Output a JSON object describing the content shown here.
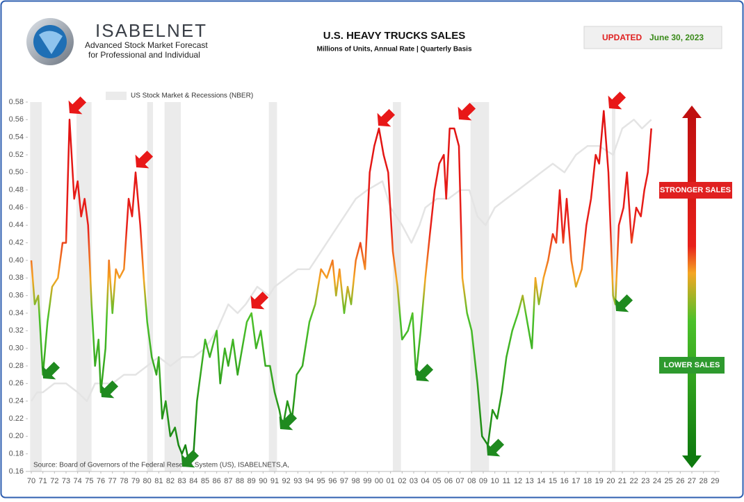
{
  "header": {
    "brand": "ISABELNET",
    "tagline1": "Advanced Stock Market Forecast",
    "tagline2": "for Professional and Individual",
    "updated_label": "UPDATED",
    "updated_date": "June 30, 2023"
  },
  "chart_data": {
    "type": "line",
    "title": "U.S. HEAVY TRUCKS SALES",
    "subtitle": "Millions of Units, Annual Rate | Quarterly Basis",
    "source": "Source: Board of Governors of the Federal Reserve System (US), ISABELNETS,A,",
    "annotations": {
      "high": "STRONGER SALES",
      "low": "LOWER SALES"
    },
    "xlim": [
      1969.7,
      2029.4
    ],
    "ylim": [
      0.16,
      0.58
    ],
    "yticks": [
      0.16,
      0.18,
      {
        "value": 0.2,
        "label": "0.20"
      },
      0.22,
      0.24,
      0.26,
      0.28,
      {
        "value": 0.3,
        "label": "0.30"
      },
      0.32,
      0.34,
      0.36,
      0.38,
      {
        "value": 0.4,
        "label": "0.40"
      },
      0.42,
      0.44,
      0.46,
      0.48,
      {
        "value": 0.5,
        "label": "0.50"
      },
      0.52,
      0.54,
      0.56,
      0.58
    ],
    "xticks": [
      {
        "value": 1970,
        "label": "70"
      },
      {
        "value": 1971,
        "label": "71"
      },
      {
        "value": 1972,
        "label": "72"
      },
      {
        "value": 1973,
        "label": "73"
      },
      {
        "value": 1974,
        "label": "74"
      },
      {
        "value": 1975,
        "label": "75"
      },
      {
        "value": 1976,
        "label": "76"
      },
      {
        "value": 1977,
        "label": "77"
      },
      {
        "value": 1978,
        "label": "78"
      },
      {
        "value": 1979,
        "label": "79"
      },
      {
        "value": 1980,
        "label": "80"
      },
      {
        "value": 1981,
        "label": "81"
      },
      {
        "value": 1982,
        "label": "82"
      },
      {
        "value": 1983,
        "label": "83"
      },
      {
        "value": 1984,
        "label": "84"
      },
      {
        "value": 1985,
        "label": "85"
      },
      {
        "value": 1986,
        "label": "86"
      },
      {
        "value": 1987,
        "label": "87"
      },
      {
        "value": 1988,
        "label": "88"
      },
      {
        "value": 1989,
        "label": "89"
      },
      {
        "value": 1990,
        "label": "90"
      },
      {
        "value": 1991,
        "label": "91"
      },
      {
        "value": 1992,
        "label": "92"
      },
      {
        "value": 1993,
        "label": "93"
      },
      {
        "value": 1994,
        "label": "94"
      },
      {
        "value": 1995,
        "label": "95"
      },
      {
        "value": 1996,
        "label": "96"
      },
      {
        "value": 1997,
        "label": "97"
      },
      {
        "value": 1998,
        "label": "98"
      },
      {
        "value": 1999,
        "label": "99"
      },
      {
        "value": 2000,
        "label": "00"
      },
      {
        "value": 2001,
        "label": "01"
      },
      {
        "value": 2002,
        "label": "02"
      },
      {
        "value": 2003,
        "label": "03"
      },
      {
        "value": 2004,
        "label": "04"
      },
      {
        "value": 2005,
        "label": "05"
      },
      {
        "value": 2006,
        "label": "06"
      },
      {
        "value": 2007,
        "label": "07"
      },
      {
        "value": 2008,
        "label": "08"
      },
      {
        "value": 2009,
        "label": "09"
      },
      {
        "value": 2010,
        "label": "10"
      },
      {
        "value": 2011,
        "label": "11"
      },
      {
        "value": 2012,
        "label": "12"
      },
      {
        "value": 2013,
        "label": "13"
      },
      {
        "value": 2014,
        "label": "14"
      },
      {
        "value": 2015,
        "label": "15"
      },
      {
        "value": 2016,
        "label": "16"
      },
      {
        "value": 2017,
        "label": "17"
      },
      {
        "value": 2018,
        "label": "18"
      },
      {
        "value": 2019,
        "label": "19"
      },
      {
        "value": 2020,
        "label": "20"
      },
      {
        "value": 2021,
        "label": "21"
      },
      {
        "value": 2022,
        "label": "22"
      },
      {
        "value": 2023,
        "label": "23"
      },
      {
        "value": 2024,
        "label": "24"
      },
      {
        "value": 2025,
        "label": "25"
      },
      {
        "value": 2026,
        "label": "26"
      },
      {
        "value": 2027,
        "label": "27"
      },
      {
        "value": 2028,
        "label": "28"
      },
      {
        "value": 2029,
        "label": "29"
      }
    ],
    "recessions": [
      [
        1969.9,
        1970.9
      ],
      [
        1973.9,
        1975.2
      ],
      [
        1980.0,
        1980.5
      ],
      [
        1981.5,
        1982.9
      ],
      [
        1990.5,
        1991.2
      ],
      [
        2001.2,
        2001.9
      ],
      [
        2007.9,
        2009.5
      ],
      [
        2020.1,
        2020.4
      ]
    ],
    "recession_color": "#ebebeb",
    "series": [
      {
        "name": "US Stock Market & Recessions (NBER)",
        "color": "#e4e4e4",
        "x": [
          1970,
          1970.5,
          1971,
          1972,
          1973,
          1974,
          1974.8,
          1975.5,
          1977,
          1978,
          1979,
          1980,
          1981,
          1982,
          1983,
          1984,
          1985,
          1986,
          1987,
          1987.8,
          1988.5,
          1989.5,
          1990.5,
          1991,
          1992,
          1993,
          1994,
          1995,
          1996,
          1997,
          1998,
          1999,
          2000.3,
          2001,
          2002,
          2002.8,
          2003.5,
          2004,
          2005,
          2006,
          2007,
          2007.8,
          2008.5,
          2009.2,
          2010,
          2011,
          2012,
          2013,
          2014,
          2015,
          2016,
          2017,
          2018,
          2019,
          2020.2,
          2021,
          2022,
          2022.7,
          2023.5
        ],
        "values": [
          0.24,
          0.25,
          0.25,
          0.26,
          0.26,
          0.25,
          0.24,
          0.26,
          0.26,
          0.27,
          0.27,
          0.28,
          0.29,
          0.28,
          0.29,
          0.29,
          0.3,
          0.32,
          0.35,
          0.34,
          0.35,
          0.37,
          0.36,
          0.37,
          0.38,
          0.39,
          0.39,
          0.41,
          0.43,
          0.45,
          0.47,
          0.48,
          0.49,
          0.46,
          0.44,
          0.42,
          0.44,
          0.46,
          0.47,
          0.47,
          0.48,
          0.48,
          0.45,
          0.44,
          0.46,
          0.47,
          0.48,
          0.49,
          0.5,
          0.51,
          0.5,
          0.52,
          0.53,
          0.53,
          0.52,
          0.55,
          0.56,
          0.55,
          0.56
        ]
      },
      {
        "gradient": [
          "#0e7a0e",
          "#4cc12a",
          "#f5a623",
          "#e8201a",
          "#e01010"
        ],
        "x": [
          1970.0,
          1970.3,
          1970.6,
          1971.0,
          1971.4,
          1971.8,
          1972.3,
          1972.7,
          1973.0,
          1973.3,
          1973.7,
          1974.0,
          1974.3,
          1974.6,
          1974.9,
          1975.2,
          1975.5,
          1975.8,
          1976.0,
          1976.4,
          1976.7,
          1977.0,
          1977.3,
          1977.6,
          1978.0,
          1978.4,
          1978.7,
          1979.0,
          1979.4,
          1979.7,
          1980.0,
          1980.4,
          1980.8,
          1981.0,
          1981.3,
          1981.6,
          1982.0,
          1982.4,
          1982.7,
          1983.0,
          1983.3,
          1983.6,
          1984.0,
          1984.3,
          1984.7,
          1985.0,
          1985.4,
          1985.8,
          1986.0,
          1986.3,
          1986.7,
          1987.0,
          1987.4,
          1987.8,
          1988.2,
          1988.6,
          1989.0,
          1989.4,
          1989.8,
          1990.2,
          1990.6,
          1991.0,
          1991.4,
          1991.7,
          1992.1,
          1992.5,
          1992.9,
          1993.4,
          1994.0,
          1994.5,
          1995.0,
          1995.5,
          1996.0,
          1996.3,
          1996.6,
          1997.0,
          1997.3,
          1997.6,
          1998.0,
          1998.4,
          1998.8,
          1999.2,
          1999.6,
          2000.0,
          2000.4,
          2000.8,
          2001.2,
          2001.6,
          2002.0,
          2002.5,
          2002.9,
          2003.2,
          2003.6,
          2004.0,
          2004.4,
          2004.8,
          2005.2,
          2005.6,
          2005.8,
          2006.1,
          2006.5,
          2006.9,
          2007.2,
          2007.6,
          2008.0,
          2008.5,
          2008.9,
          2009.4,
          2009.8,
          2010.2,
          2010.6,
          2011.0,
          2011.5,
          2012.0,
          2012.4,
          2012.8,
          2013.2,
          2013.5,
          2013.8,
          2014.2,
          2014.6,
          2015.0,
          2015.3,
          2015.6,
          2015.9,
          2016.2,
          2016.6,
          2017.0,
          2017.5,
          2017.9,
          2018.3,
          2018.7,
          2019.0,
          2019.4,
          2019.8,
          2020.2,
          2020.4,
          2020.7,
          2021.1,
          2021.4,
          2021.8,
          2022.2,
          2022.6,
          2022.9,
          2023.2,
          2023.5
        ],
        "values": [
          0.4,
          0.35,
          0.36,
          0.27,
          0.33,
          0.37,
          0.38,
          0.42,
          0.42,
          0.56,
          0.47,
          0.49,
          0.45,
          0.47,
          0.44,
          0.35,
          0.28,
          0.31,
          0.25,
          0.3,
          0.4,
          0.34,
          0.39,
          0.38,
          0.39,
          0.47,
          0.45,
          0.5,
          0.44,
          0.38,
          0.33,
          0.29,
          0.27,
          0.29,
          0.22,
          0.24,
          0.2,
          0.21,
          0.19,
          0.18,
          0.19,
          0.17,
          0.18,
          0.24,
          0.28,
          0.31,
          0.29,
          0.31,
          0.32,
          0.26,
          0.3,
          0.28,
          0.31,
          0.27,
          0.3,
          0.33,
          0.34,
          0.3,
          0.32,
          0.28,
          0.28,
          0.25,
          0.23,
          0.21,
          0.24,
          0.22,
          0.27,
          0.28,
          0.33,
          0.35,
          0.39,
          0.38,
          0.4,
          0.36,
          0.39,
          0.34,
          0.37,
          0.35,
          0.4,
          0.42,
          0.39,
          0.5,
          0.53,
          0.55,
          0.52,
          0.5,
          0.41,
          0.37,
          0.31,
          0.32,
          0.34,
          0.27,
          0.32,
          0.38,
          0.43,
          0.48,
          0.51,
          0.52,
          0.47,
          0.55,
          0.55,
          0.53,
          0.38,
          0.34,
          0.32,
          0.26,
          0.2,
          0.19,
          0.23,
          0.22,
          0.25,
          0.29,
          0.32,
          0.34,
          0.36,
          0.33,
          0.3,
          0.38,
          0.35,
          0.38,
          0.4,
          0.43,
          0.42,
          0.48,
          0.42,
          0.47,
          0.4,
          0.37,
          0.39,
          0.44,
          0.47,
          0.52,
          0.51,
          0.57,
          0.5,
          0.36,
          0.35,
          0.44,
          0.46,
          0.5,
          0.42,
          0.46,
          0.45,
          0.48,
          0.5,
          0.55
        ]
      }
    ]
  }
}
